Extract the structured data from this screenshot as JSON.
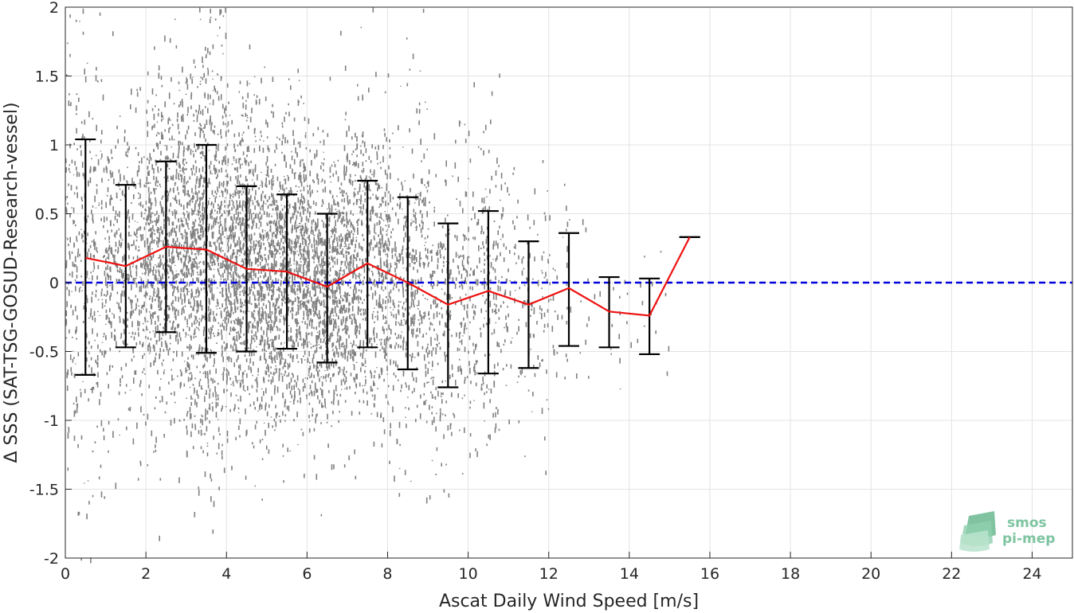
{
  "chart_data": {
    "type": "scatter",
    "xlabel": "Ascat Daily Wind Speed [m/s]",
    "ylabel": "Δ SSS (SAT-TSG-GOSUD-Research-vessel)",
    "xlim": [
      0,
      25
    ],
    "ylim": [
      -2,
      2
    ],
    "xticks": [
      0,
      2,
      4,
      6,
      8,
      10,
      12,
      14,
      16,
      18,
      20,
      22,
      24
    ],
    "yticks": [
      2,
      1.5,
      1,
      0.5,
      0,
      -0.5,
      -1,
      -1.5,
      -2
    ],
    "ytick_labels": [
      "2",
      "1.5",
      "1",
      "0.5",
      "0",
      "-0.5",
      "-1",
      "-1.5",
      "-2"
    ],
    "grid": true,
    "reference_line": {
      "y": 0,
      "style": "dashed",
      "color": "#0000dd"
    },
    "series": [
      {
        "type": "line",
        "color": "#ee1111",
        "x": [
          0.5,
          1.5,
          2.5,
          3.5,
          4.5,
          5.5,
          6.5,
          7.5,
          8.5,
          9.5,
          10.5,
          11.5,
          12.5,
          13.5,
          14.5,
          15.5
        ],
        "y": [
          0.18,
          0.12,
          0.26,
          0.24,
          0.1,
          0.08,
          -0.03,
          0.14,
          0.0,
          -0.16,
          -0.06,
          -0.16,
          -0.04,
          -0.21,
          -0.24,
          0.33
        ]
      },
      {
        "type": "errorbar",
        "color": "#000000",
        "x": [
          0.5,
          1.5,
          2.5,
          3.5,
          4.5,
          5.5,
          6.5,
          7.5,
          8.5,
          9.5,
          10.5,
          11.5,
          12.5,
          13.5,
          14.5,
          15.5
        ],
        "upper": [
          1.04,
          0.71,
          0.88,
          1.0,
          0.7,
          0.64,
          0.5,
          0.74,
          0.62,
          0.43,
          0.52,
          0.3,
          0.36,
          0.04,
          0.03,
          0.33
        ],
        "lower": [
          -0.67,
          -0.47,
          -0.36,
          -0.51,
          -0.5,
          -0.48,
          -0.58,
          -0.47,
          -0.63,
          -0.76,
          -0.66,
          -0.62,
          -0.46,
          -0.47,
          -0.52,
          0.33
        ]
      },
      {
        "type": "scatter",
        "color": "#808080",
        "description_bins": [
          {
            "x": 0.5,
            "center": 0.18,
            "spread": 0.85,
            "weight": 0.35
          },
          {
            "x": 1.5,
            "center": 0.12,
            "spread": 0.6,
            "weight": 0.45
          },
          {
            "x": 2.5,
            "center": 0.26,
            "spread": 0.62,
            "weight": 0.8
          },
          {
            "x": 3.5,
            "center": 0.24,
            "spread": 0.75,
            "weight": 1.0
          },
          {
            "x": 4.5,
            "center": 0.1,
            "spread": 0.6,
            "weight": 1.0
          },
          {
            "x": 5.5,
            "center": 0.08,
            "spread": 0.56,
            "weight": 1.0
          },
          {
            "x": 6.5,
            "center": -0.03,
            "spread": 0.54,
            "weight": 0.9
          },
          {
            "x": 7.5,
            "center": 0.14,
            "spread": 0.6,
            "weight": 0.65
          },
          {
            "x": 8.5,
            "center": 0.0,
            "spread": 0.62,
            "weight": 0.45
          },
          {
            "x": 9.5,
            "center": -0.16,
            "spread": 0.6,
            "weight": 0.3
          },
          {
            "x": 10.5,
            "center": -0.06,
            "spread": 0.6,
            "weight": 0.25
          },
          {
            "x": 11.5,
            "center": -0.16,
            "spread": 0.46,
            "weight": 0.12
          },
          {
            "x": 12.5,
            "center": -0.04,
            "spread": 0.4,
            "weight": 0.04
          },
          {
            "x": 13.5,
            "center": -0.21,
            "spread": 0.25,
            "weight": 0.01
          },
          {
            "x": 14.5,
            "center": -0.24,
            "spread": 0.28,
            "weight": 0.01
          }
        ]
      }
    ]
  },
  "logo": {
    "line1": "smos",
    "line2": "pi-mep",
    "color": "#7ec4a0"
  }
}
